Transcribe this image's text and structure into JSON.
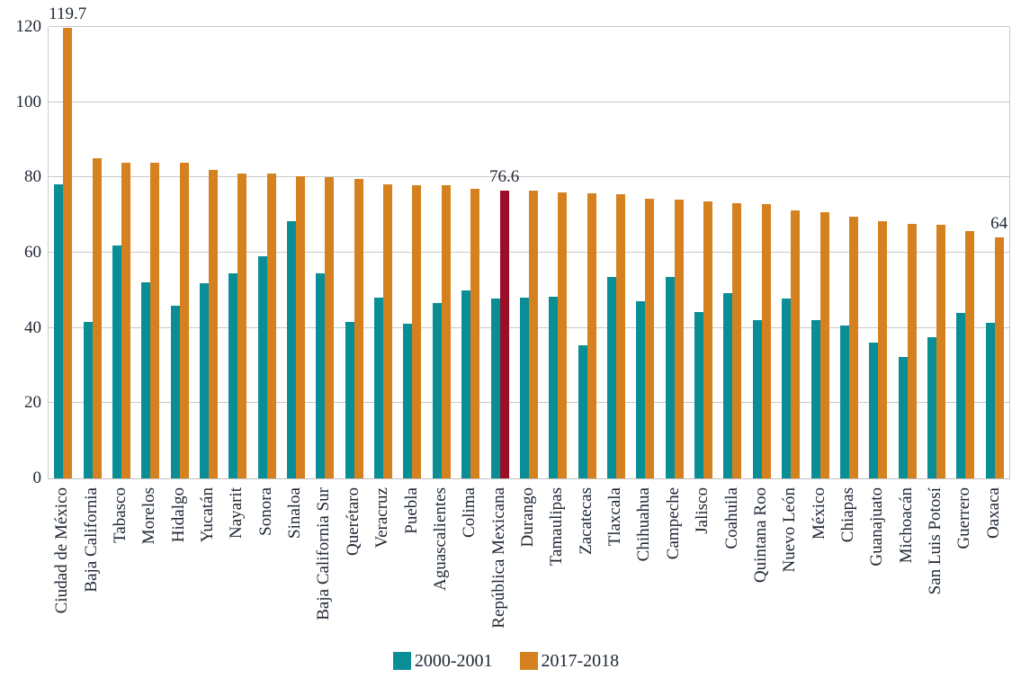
{
  "chart_data": {
    "type": "bar",
    "title": "",
    "xlabel": "",
    "ylabel": "",
    "ylim": [
      0,
      120
    ],
    "yticks": [
      0,
      20,
      40,
      60,
      80,
      100,
      120
    ],
    "grid": "horizontal",
    "legend_position": "bottom-center",
    "categories": [
      "Ciudad de México",
      "Baja California",
      "Tabasco",
      "Morelos",
      "Hidalgo",
      "Yucatán",
      "Nayarit",
      "Sonora",
      "Sinaloa",
      "Baja California Sur",
      "Querétaro",
      "Veracruz",
      "Puebla",
      "Aguascalientes",
      "Colima",
      "República Mexicana",
      "Durango",
      "Tamaulipas",
      "Zacatecas",
      "Tlaxcala",
      "Chihuahua",
      "Campeche",
      "Jalisco",
      "Coahuila",
      "Quintana Roo",
      "Nuevo León",
      "México",
      "Chiapas",
      "Guanajuato",
      "Michoacán",
      "San Luis Potosí",
      "Guerrero",
      "Oaxaca"
    ],
    "series": [
      {
        "name": "2000-2001",
        "color": "#0a8e96",
        "values": [
          78.2,
          41.7,
          62.0,
          52.2,
          45.9,
          51.8,
          54.6,
          59.0,
          68.4,
          54.6,
          41.7,
          48.1,
          41.2,
          46.6,
          50.0,
          47.7,
          48.0,
          48.2,
          35.5,
          53.5,
          47.0,
          53.5,
          44.2,
          49.2,
          42.0,
          47.9,
          42.1,
          40.7,
          36.1,
          32.2,
          37.5,
          44.0,
          41.4
        ]
      },
      {
        "name": "2017-2018",
        "color": "#d5811f",
        "values": [
          119.7,
          85.1,
          84.0,
          83.9,
          83.9,
          82.0,
          81.1,
          81.0,
          80.3,
          80.2,
          79.5,
          78.2,
          78.0,
          77.9,
          77.0,
          76.6,
          76.5,
          76.0,
          75.9,
          75.5,
          74.4,
          74.2,
          73.6,
          73.1,
          73.0,
          71.2,
          70.7,
          69.5,
          68.3,
          67.6,
          67.5,
          65.7,
          64.0
        ]
      }
    ],
    "highlight": {
      "category": "República Mexicana",
      "series_index": 1,
      "color": "#9a0e28"
    },
    "annotations": [
      {
        "category_index": 0,
        "series_index": 1,
        "text": "119.7"
      },
      {
        "category_index": 15,
        "series_index": 1,
        "text": "76.6"
      },
      {
        "category_index": 32,
        "series_index": 1,
        "text": "64"
      }
    ]
  },
  "colors": {
    "grid": "#c9c9c9",
    "axis_text": "#1e2733",
    "background": "#ffffff"
  }
}
